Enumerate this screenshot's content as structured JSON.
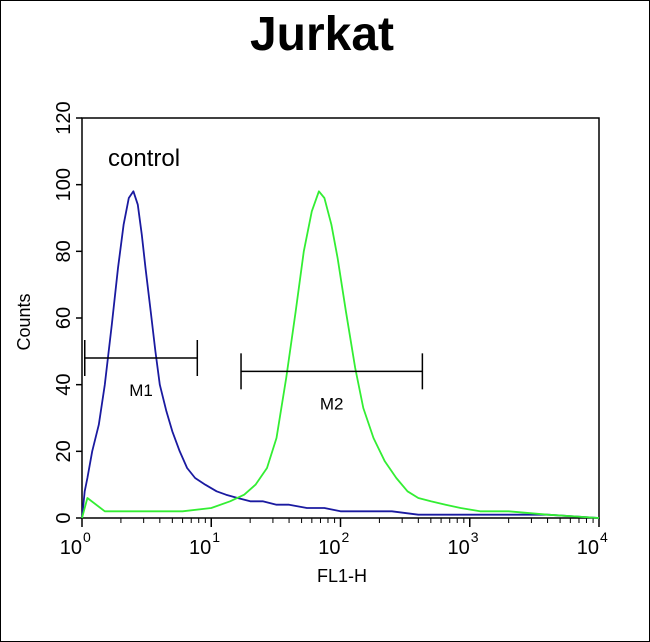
{
  "chart_data": {
    "type": "line",
    "title": "Jurkat",
    "xlabel": "FL1-H",
    "ylabel": "Counts",
    "x_scale": "log",
    "xlim": [
      1,
      10000
    ],
    "ylim": [
      0,
      120
    ],
    "x_ticks": [
      {
        "base": "10",
        "exp": "0"
      },
      {
        "base": "10",
        "exp": "1"
      },
      {
        "base": "10",
        "exp": "2"
      },
      {
        "base": "10",
        "exp": "3"
      },
      {
        "base": "10",
        "exp": "4"
      }
    ],
    "y_ticks": [
      "0",
      "20",
      "40",
      "60",
      "80",
      "100",
      "120"
    ],
    "annotation": "control",
    "markers": [
      {
        "label": "M1",
        "x_start": 1.05,
        "x_end": 7.8,
        "y": 48
      },
      {
        "label": "M2",
        "x_start": 17,
        "x_end": 430,
        "y": 44
      }
    ],
    "series": [
      {
        "color": "#1a1aa0",
        "x": [
          1.0,
          1.05,
          1.1,
          1.2,
          1.35,
          1.5,
          1.7,
          1.9,
          2.1,
          2.3,
          2.5,
          2.7,
          2.9,
          3.1,
          3.4,
          3.7,
          4.0,
          4.5,
          5.0,
          5.7,
          6.5,
          7.5,
          9,
          11,
          13,
          16,
          20,
          25,
          32,
          40,
          55,
          75,
          100,
          150,
          250,
          400,
          700,
          1000,
          2000,
          4000,
          10000
        ],
        "y": [
          0,
          8,
          12,
          20,
          28,
          40,
          58,
          75,
          88,
          96,
          98,
          94,
          85,
          75,
          62,
          50,
          40,
          32,
          26,
          20,
          15,
          12,
          10,
          8,
          7,
          6,
          5,
          5,
          4,
          4,
          3,
          3,
          2,
          2,
          2,
          1,
          1,
          1,
          1,
          1,
          0
        ]
      },
      {
        "color": "#33ee33",
        "x": [
          1.0,
          1.1,
          1.5,
          3,
          6,
          10,
          14,
          18,
          22,
          27,
          32,
          38,
          45,
          52,
          60,
          68,
          75,
          85,
          95,
          110,
          130,
          150,
          180,
          220,
          270,
          330,
          400,
          500,
          650,
          850,
          1200,
          2000,
          4000,
          10000
        ],
        "y": [
          0,
          6,
          2,
          2,
          2,
          3,
          5,
          7,
          10,
          15,
          24,
          42,
          62,
          80,
          92,
          98,
          96,
          88,
          78,
          62,
          45,
          33,
          24,
          17,
          12,
          8,
          6,
          5,
          4,
          3,
          2,
          2,
          1,
          0
        ]
      }
    ]
  }
}
